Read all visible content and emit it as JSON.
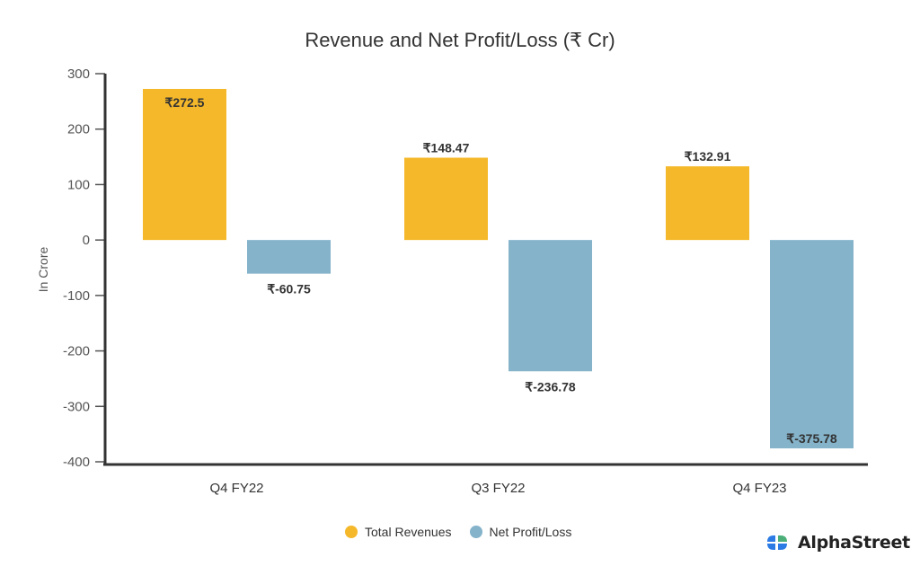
{
  "chart_data": {
    "type": "bar",
    "title": "Revenue and Net Profit/Loss (₹ Cr)",
    "xlabel": "",
    "ylabel": "In Crore",
    "ylim": [
      -400,
      300
    ],
    "yticks": [
      300,
      200,
      100,
      0,
      -100,
      -200,
      -300,
      -400
    ],
    "grid": false,
    "legend_position": "bottom-center",
    "categories": [
      "Q4 FY22",
      "Q3 FY22",
      "Q4 FY23"
    ],
    "series": [
      {
        "name": "Total Revenues",
        "color": "#F5B82A",
        "values": [
          272.5,
          148.47,
          132.91
        ],
        "labels": [
          "₹272.5",
          "₹148.47",
          "₹132.91"
        ]
      },
      {
        "name": "Net Profit/Loss",
        "color": "#84B3CA",
        "values": [
          -60.75,
          -236.78,
          -375.78
        ],
        "labels": [
          "₹-60.75",
          "₹-236.78",
          "₹-375.78"
        ]
      }
    ]
  },
  "legend": {
    "items": [
      {
        "label": "Total Revenues",
        "color": "#F5B82A"
      },
      {
        "label": "Net Profit/Loss",
        "color": "#84B3CA"
      }
    ]
  },
  "brand": {
    "name": "AlphaStreet",
    "icon": "alphastreet-logo-icon",
    "colors": {
      "blue": "#2C7BE5",
      "green": "#4CAF7A"
    }
  }
}
